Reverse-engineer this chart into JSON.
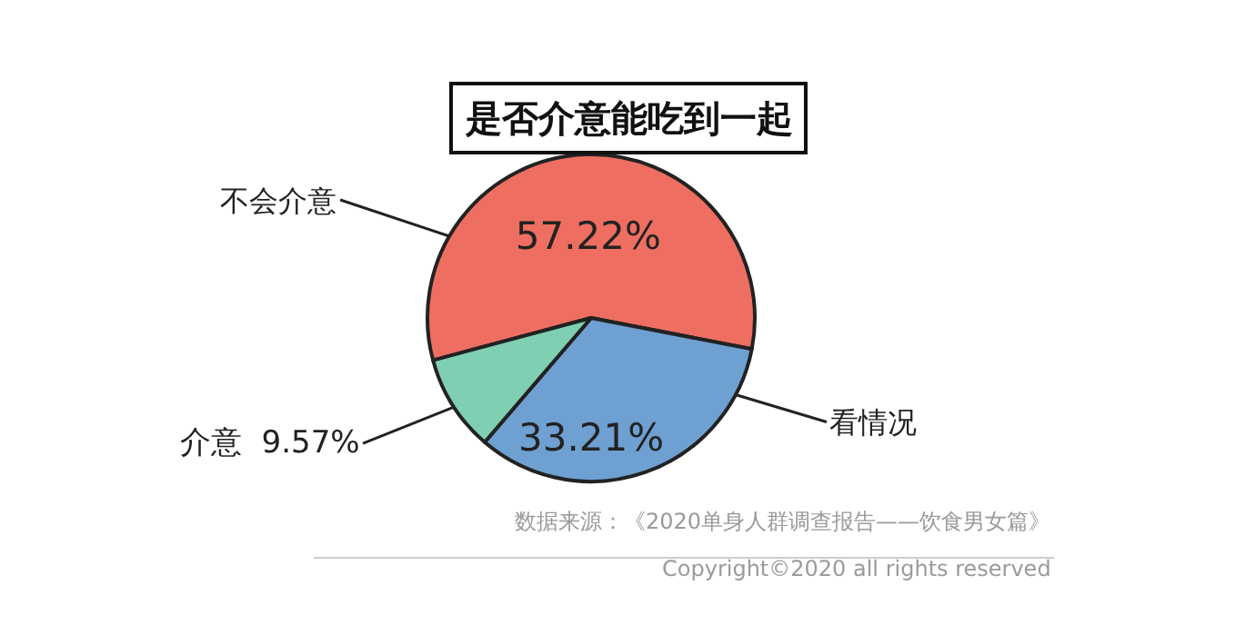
{
  "chart_data": {
    "type": "pie",
    "title": "是否介意能吃到一起",
    "categories": [
      "不会介意",
      "看情况",
      "介意"
    ],
    "values": [
      57.22,
      33.21,
      9.57
    ],
    "colors": [
      "#ee6f61",
      "#6fa0d2",
      "#7fcfb2"
    ],
    "value_labels": [
      "57.22%",
      "33.21%",
      "9.57%"
    ],
    "legend": false,
    "annotations": [
      "数据来源：《2020单身人群调查报告——饮食男女篇》",
      "Copyright©2020 all rights reserved"
    ]
  }
}
